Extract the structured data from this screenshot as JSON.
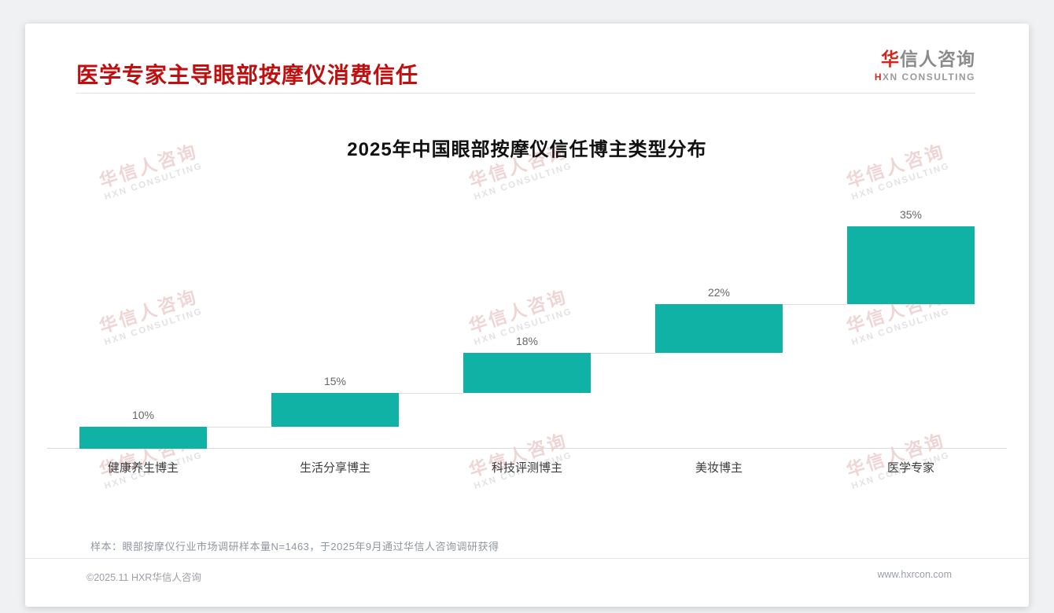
{
  "page": {
    "title": "医学专家主导眼部按摩仪消费信任",
    "logo": {
      "cn_first": "华",
      "cn_rest": "信人咨询",
      "en_first": "H",
      "en_rest": "XN CONSULTING"
    },
    "watermark": {
      "line1": "华信人咨询",
      "line2": "HXN CONSULTING"
    },
    "note": "样本：眼部按摩仪行业市场调研样本量N=1463，于2025年9月通过华信人咨询调研获得",
    "footer": {
      "left": "©2025.11 HXR华信人咨询",
      "right": "www.hxrcon.com"
    }
  },
  "colors": {
    "title_red": "#bf0f0f",
    "logo_red": "#d3271e",
    "bar_teal": "#10b2a6",
    "connector_gray": "#dedede",
    "baseline_gray": "#d8d8d8"
  },
  "chart_data": {
    "type": "bar",
    "subtype": "waterfall-stair",
    "title": "2025年中国眼部按摩仪信任博主类型分布",
    "categories": [
      "健康养生博主",
      "生活分享博主",
      "科技评测博主",
      "美妆博主",
      "医学专家"
    ],
    "values": [
      10,
      15,
      18,
      22,
      35
    ],
    "cumulative_start": [
      0,
      10,
      25,
      43,
      65
    ],
    "data_labels": [
      "10%",
      "15%",
      "18%",
      "22%",
      "35%"
    ],
    "unit": "%",
    "total": 100,
    "ylim": [
      0,
      100
    ],
    "xlabel": "",
    "ylabel": "",
    "grid": false,
    "legend": "none",
    "bar_color": "#10b2a6",
    "notes": "each bar floats starting at cumulative sum of previous bars; light gray connectors join consecutive bars at the cumulative level"
  }
}
